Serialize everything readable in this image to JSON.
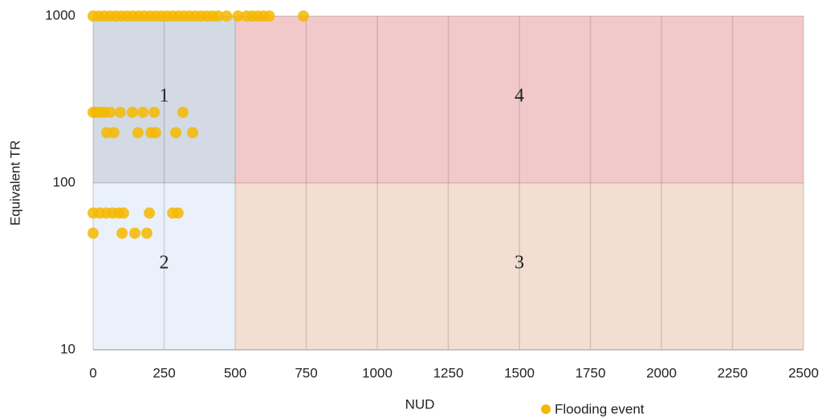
{
  "chart_data": {
    "type": "scatter",
    "x_label": "NUD",
    "y_label": "Equivalent TR",
    "xlim": [
      0,
      2500
    ],
    "xticks": [
      0,
      250,
      500,
      750,
      1000,
      1250,
      1500,
      1750,
      2000,
      2250,
      2500
    ],
    "ylim": [
      10,
      1000
    ],
    "yticks": [
      10,
      100,
      1000
    ],
    "y_log": true,
    "legend": "bottom",
    "regions": [
      {
        "label": "1",
        "x": [
          0,
          500
        ],
        "y": [
          100,
          1000
        ],
        "color": "#d3dae4"
      },
      {
        "label": "2",
        "x": [
          0,
          500
        ],
        "y": [
          10,
          100
        ],
        "color": "#eaf1fa"
      },
      {
        "label": "3",
        "x": [
          500,
          2500
        ],
        "y": [
          10,
          100
        ],
        "color": "#f3ded1"
      },
      {
        "label": "4",
        "x": [
          500,
          2500
        ],
        "y": [
          100,
          1000
        ],
        "color": "#f2c9ca"
      }
    ],
    "series": [
      {
        "name": "Flooding event",
        "color": "#f5b800",
        "x": [
          0,
          20,
          40,
          60,
          80,
          100,
          120,
          140,
          160,
          180,
          200,
          220,
          240,
          260,
          280,
          300,
          320,
          340,
          360,
          380,
          400,
          420,
          440,
          470,
          510,
          540,
          560,
          580,
          600,
          620,
          740,
          0,
          11,
          25,
          40,
          60,
          96,
          138,
          175,
          215,
          316,
          48,
          73,
          158,
          203,
          220,
          291,
          350,
          0,
          23,
          45,
          68,
          90,
          107,
          198,
          280,
          299,
          0,
          102,
          147,
          189
        ],
        "values": [
          1000,
          1000,
          1000,
          1000,
          1000,
          1000,
          1000,
          1000,
          1000,
          1000,
          1000,
          1000,
          1000,
          1000,
          1000,
          1000,
          1000,
          1000,
          1000,
          1000,
          1000,
          1000,
          1000,
          1000,
          1000,
          1000,
          1000,
          1000,
          1000,
          1000,
          1000,
          265,
          265,
          265,
          265,
          265,
          265,
          265,
          265,
          265,
          265,
          200,
          200,
          200,
          200,
          200,
          200,
          200,
          66,
          66,
          66,
          66,
          66,
          66,
          66,
          66,
          66,
          50,
          50,
          50,
          50
        ]
      }
    ]
  }
}
